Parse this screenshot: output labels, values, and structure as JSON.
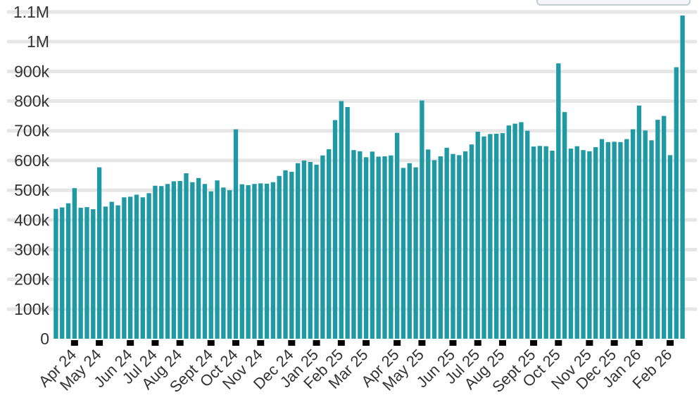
{
  "colors": {
    "bar": "#1f9aa4",
    "grid": "#e6e6e6",
    "text": "#333333",
    "axis_marker": "#000000"
  },
  "chart_data": {
    "type": "bar",
    "title": "",
    "xlabel": "",
    "ylabel": "",
    "ylim": [
      0,
      1100000
    ],
    "grid": true,
    "y_ticks": [
      {
        "value": 0,
        "label": "0"
      },
      {
        "value": 100000,
        "label": "100k"
      },
      {
        "value": 200000,
        "label": "200k"
      },
      {
        "value": 300000,
        "label": "300k"
      },
      {
        "value": 400000,
        "label": "400k"
      },
      {
        "value": 500000,
        "label": "500k"
      },
      {
        "value": 600000,
        "label": "600k"
      },
      {
        "value": 700000,
        "label": "700k"
      },
      {
        "value": 800000,
        "label": "800k"
      },
      {
        "value": 900000,
        "label": "900k"
      },
      {
        "value": 1000000,
        "label": "1M"
      },
      {
        "value": 1100000,
        "label": "1.1M"
      }
    ],
    "month_labels": [
      "Apr 24",
      "May 24",
      "Jun 24",
      "Jul 24",
      "Aug 24",
      "Sept 24",
      "Oct 24",
      "Nov 24",
      "Dec 24",
      "Jan 25",
      "Feb 25",
      "Mar 25",
      "Apr 25",
      "May 25",
      "Jun 25",
      "Jul 25",
      "Aug 25",
      "Sept 25",
      "Oct 25",
      "Nov 25",
      "Dec 25",
      "Jan 26",
      "Feb 26"
    ],
    "month_start_bar_index": [
      3,
      7,
      12,
      16,
      20,
      25,
      29,
      33,
      38,
      42,
      46,
      50,
      55,
      59,
      64,
      68,
      72,
      77,
      81,
      86,
      90,
      94,
      99
    ],
    "values": [
      437000,
      442000,
      456000,
      507000,
      441000,
      443000,
      436000,
      577000,
      445000,
      461000,
      449000,
      476000,
      478000,
      485000,
      476000,
      490000,
      515000,
      514000,
      521000,
      530000,
      531000,
      557000,
      527000,
      541000,
      521000,
      496000,
      533000,
      509000,
      500000,
      705000,
      520000,
      517000,
      521000,
      523000,
      522000,
      527000,
      548000,
      567000,
      562000,
      591000,
      600000,
      595000,
      586000,
      617000,
      638000,
      736000,
      800000,
      780000,
      635000,
      631000,
      611000,
      630000,
      613000,
      614000,
      617000,
      693000,
      575000,
      591000,
      577000,
      802000,
      637000,
      601000,
      614000,
      643000,
      622000,
      618000,
      631000,
      654000,
      697000,
      681000,
      689000,
      690000,
      692000,
      718000,
      724000,
      729000,
      700000,
      647000,
      649000,
      648000,
      633000,
      927000,
      763000,
      640000,
      648000,
      635000,
      631000,
      645000,
      672000,
      662000,
      663000,
      662000,
      672000,
      705000,
      785000,
      701000,
      668000,
      737000,
      750000,
      618000,
      914000,
      1088000
    ]
  }
}
